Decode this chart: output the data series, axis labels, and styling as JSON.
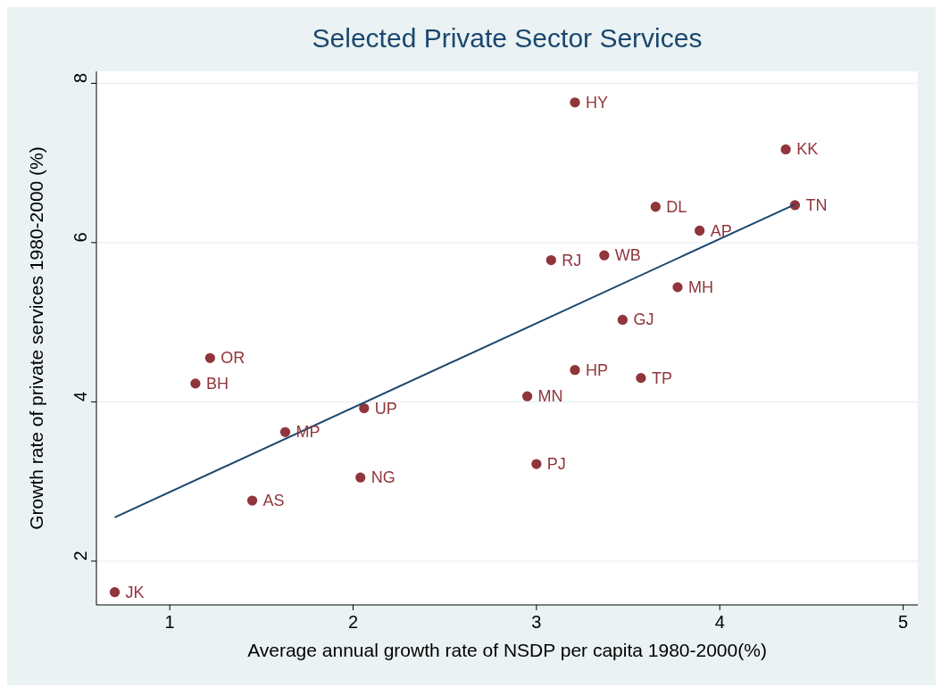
{
  "chart_data": {
    "type": "scatter",
    "title": "Selected Private Sector Services",
    "xlabel": "Average annual growth rate of NSDP per capita 1980-2000(%)",
    "ylabel": "Growth rate of private services 1980-2000 (%)",
    "xlim": [
      0.6,
      5.08
    ],
    "ylim": [
      1.45,
      8.15
    ],
    "xticks": [
      1,
      2,
      3,
      4,
      5
    ],
    "yticks": [
      2,
      4,
      6,
      8
    ],
    "grid": "y",
    "series": [
      {
        "marker": "circle",
        "color": "#90353b",
        "x": [
          0.7,
          1.45,
          2.04,
          1.63,
          2.06,
          1.14,
          1.22,
          2.95,
          3.0,
          3.21,
          3.57,
          3.47,
          3.77,
          3.08,
          3.37,
          3.89,
          3.65,
          4.41,
          4.36,
          3.21
        ],
        "values": [
          1.61,
          2.76,
          3.05,
          3.62,
          3.92,
          4.23,
          4.55,
          4.07,
          3.22,
          4.4,
          4.3,
          5.03,
          5.44,
          5.78,
          5.84,
          6.15,
          6.45,
          6.47,
          7.17,
          7.76
        ]
      },
      {
        "type": "line",
        "color": "#1a476f",
        "x": [
          0.7,
          4.41
        ],
        "values": [
          2.55,
          6.48
        ]
      }
    ],
    "annotations": [
      {
        "text": "JK",
        "x": 0.7,
        "y": 1.61
      },
      {
        "text": "AS",
        "x": 1.45,
        "y": 2.76
      },
      {
        "text": "NG",
        "x": 2.04,
        "y": 3.05
      },
      {
        "text": "MP",
        "x": 1.63,
        "y": 3.62
      },
      {
        "text": "UP",
        "x": 2.06,
        "y": 3.92
      },
      {
        "text": "BH",
        "x": 1.14,
        "y": 4.23
      },
      {
        "text": "OR",
        "x": 1.22,
        "y": 4.55
      },
      {
        "text": "MN",
        "x": 2.95,
        "y": 4.07
      },
      {
        "text": "PJ",
        "x": 3.0,
        "y": 3.22
      },
      {
        "text": "HP",
        "x": 3.21,
        "y": 4.4
      },
      {
        "text": "TP",
        "x": 3.57,
        "y": 4.3
      },
      {
        "text": "GJ",
        "x": 3.47,
        "y": 5.03
      },
      {
        "text": "MH",
        "x": 3.77,
        "y": 5.44
      },
      {
        "text": "RJ",
        "x": 3.08,
        "y": 5.78
      },
      {
        "text": "WB",
        "x": 3.37,
        "y": 5.84
      },
      {
        "text": "AP",
        "x": 3.89,
        "y": 6.15
      },
      {
        "text": "DL",
        "x": 3.65,
        "y": 6.45
      },
      {
        "text": "TN",
        "x": 4.41,
        "y": 6.47
      },
      {
        "text": "KK",
        "x": 4.36,
        "y": 7.17
      },
      {
        "text": "HY",
        "x": 3.21,
        "y": 7.76
      }
    ]
  }
}
